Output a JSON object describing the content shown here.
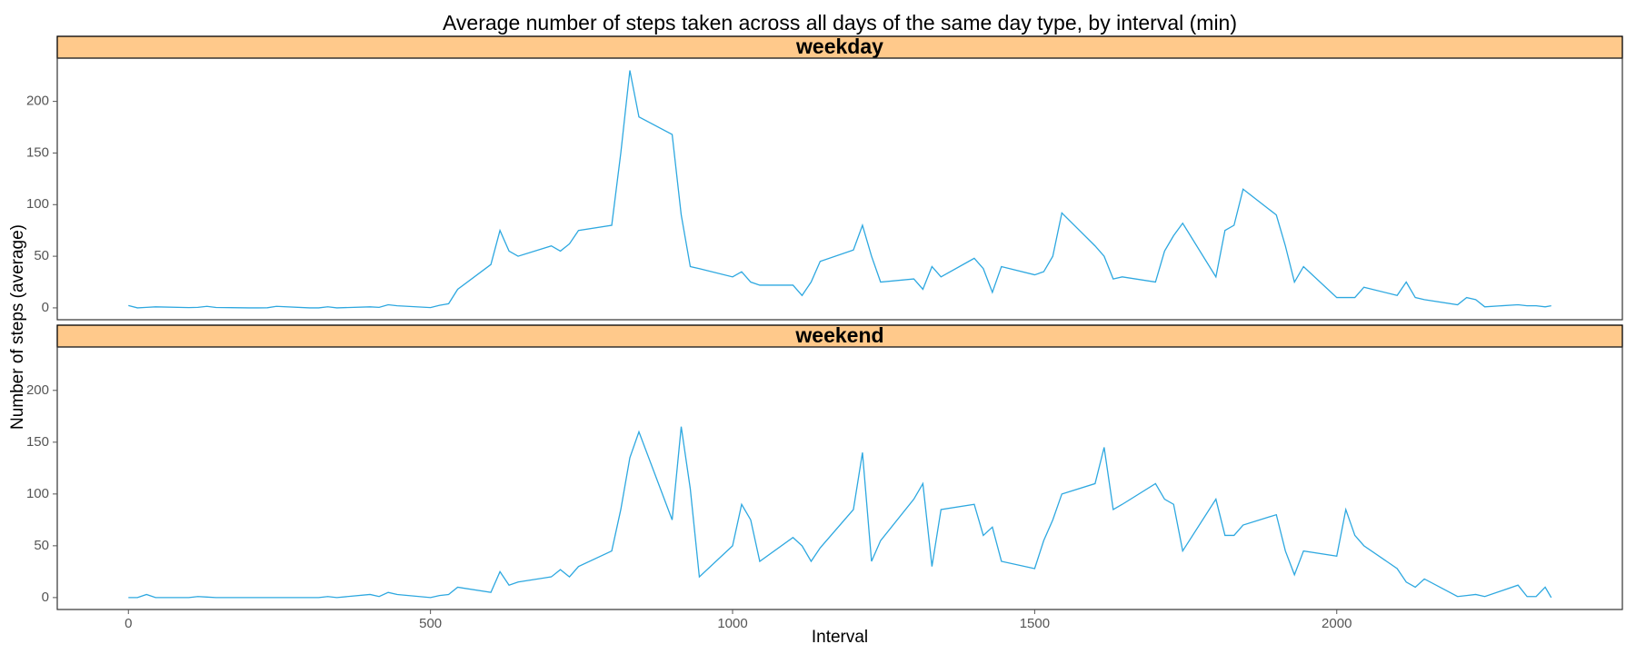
{
  "title": "Average number of steps taken across all days of the same day type, by interval (min)",
  "x_label": "Interval",
  "y_label": "Number of steps (average)",
  "chart_data": [
    {
      "type": "line",
      "title": "weekday",
      "color": "#2ea8e0",
      "x": [
        0,
        15,
        30,
        45,
        100,
        115,
        130,
        145,
        200,
        215,
        230,
        245,
        300,
        315,
        330,
        345,
        400,
        415,
        430,
        445,
        500,
        515,
        530,
        545,
        600,
        615,
        630,
        645,
        700,
        715,
        730,
        745,
        800,
        815,
        830,
        845,
        900,
        915,
        930,
        945,
        1000,
        1015,
        1030,
        1045,
        1100,
        1115,
        1130,
        1145,
        1200,
        1215,
        1230,
        1245,
        1300,
        1315,
        1330,
        1345,
        1400,
        1415,
        1430,
        1445,
        1500,
        1515,
        1530,
        1545,
        1600,
        1615,
        1630,
        1645,
        1700,
        1715,
        1730,
        1745,
        1800,
        1815,
        1830,
        1845,
        1900,
        1915,
        1930,
        1945,
        2000,
        2015,
        2030,
        2045,
        2100,
        2115,
        2130,
        2145,
        2200,
        2215,
        2230,
        2245,
        2300,
        2315,
        2330,
        2345,
        2355
      ],
      "values": [
        2.3,
        0,
        0.5,
        1,
        0.3,
        0.5,
        1.5,
        0.4,
        0,
        0,
        0.1,
        1.5,
        0,
        0,
        1,
        0,
        1,
        0.5,
        3,
        2,
        0.3,
        2.5,
        4,
        18,
        42,
        75,
        55,
        50,
        60,
        55,
        62,
        75,
        80,
        150,
        230,
        185,
        168,
        90,
        40,
        38,
        30,
        35,
        25,
        22,
        22,
        12,
        25,
        45,
        56,
        80,
        50,
        25,
        28,
        18,
        40,
        30,
        48,
        38,
        15,
        40,
        32,
        35,
        50,
        92,
        60,
        50,
        28,
        30,
        25,
        55,
        70,
        82,
        30,
        75,
        80,
        115,
        90,
        60,
        25,
        40,
        10,
        10,
        10,
        20,
        12,
        25,
        10,
        8,
        3,
        10,
        8,
        1,
        3,
        2,
        2,
        1,
        2
      ],
      "xlim": [
        -117.75,
        2472.75
      ],
      "ylim": [
        -11.5,
        241.9
      ],
      "xticks": [
        0,
        500,
        1000,
        1500,
        2000
      ],
      "yticks": [
        0,
        50,
        100,
        150,
        200
      ]
    },
    {
      "type": "line",
      "title": "weekend",
      "color": "#2ea8e0",
      "x": [
        0,
        15,
        30,
        45,
        100,
        115,
        130,
        145,
        200,
        215,
        230,
        245,
        300,
        315,
        330,
        345,
        400,
        415,
        430,
        445,
        500,
        515,
        530,
        545,
        600,
        615,
        630,
        645,
        700,
        715,
        730,
        745,
        800,
        815,
        830,
        845,
        900,
        915,
        930,
        945,
        1000,
        1015,
        1030,
        1045,
        1100,
        1115,
        1130,
        1145,
        1200,
        1215,
        1230,
        1245,
        1300,
        1315,
        1330,
        1345,
        1400,
        1415,
        1430,
        1445,
        1500,
        1515,
        1530,
        1545,
        1600,
        1615,
        1630,
        1645,
        1700,
        1715,
        1730,
        1745,
        1800,
        1815,
        1830,
        1845,
        1900,
        1915,
        1930,
        1945,
        2000,
        2015,
        2030,
        2045,
        2100,
        2115,
        2130,
        2145,
        2200,
        2215,
        2230,
        2245,
        2300,
        2315,
        2330,
        2345,
        2355
      ],
      "values": [
        0,
        0,
        3,
        0,
        0,
        1,
        0.5,
        0,
        0,
        0,
        0,
        0,
        0,
        0,
        1,
        0,
        3,
        1,
        5,
        3,
        0,
        2,
        3,
        10,
        5,
        25,
        12,
        15,
        20,
        27,
        20,
        30,
        45,
        85,
        135,
        160,
        75,
        165,
        105,
        20,
        50,
        90,
        75,
        35,
        58,
        50,
        35,
        48,
        85,
        140,
        35,
        55,
        95,
        110,
        30,
        85,
        90,
        60,
        68,
        35,
        28,
        55,
        75,
        100,
        110,
        145,
        85,
        90,
        110,
        95,
        90,
        45,
        95,
        60,
        60,
        70,
        80,
        45,
        22,
        45,
        40,
        85,
        60,
        50,
        28,
        15,
        10,
        18,
        1,
        2,
        3,
        1,
        12,
        1,
        1,
        10,
        0
      ],
      "xlim": [
        -117.75,
        2472.75
      ],
      "ylim": [
        -11.5,
        241.9
      ],
      "xticks": [
        0,
        500,
        1000,
        1500,
        2000
      ],
      "yticks": [
        0,
        50,
        100,
        150,
        200
      ]
    }
  ]
}
